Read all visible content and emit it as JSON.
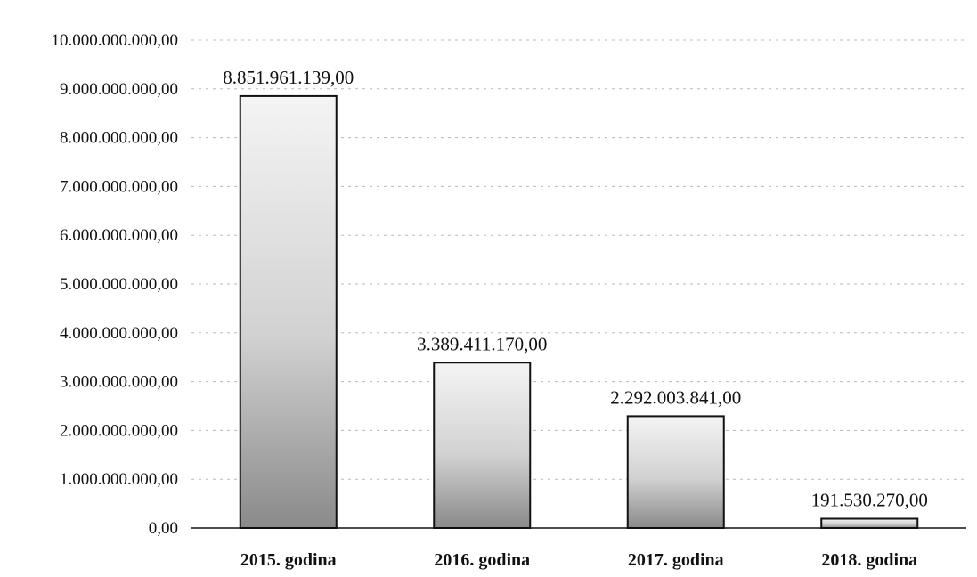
{
  "chart_data": {
    "type": "bar",
    "title": "",
    "xlabel": "",
    "ylabel": "",
    "categories": [
      "2015. godina",
      "2016. godina",
      "2017. godina",
      "2018. godina"
    ],
    "values": [
      8851961139.0,
      3389411170.0,
      2292003841.0,
      191530270.0
    ],
    "value_labels": [
      "8.851.961.139,00",
      "3.389.411.170,00",
      "2.292.003.841,00",
      "191.530.270,00"
    ],
    "ylim": [
      0,
      10000000000
    ],
    "y_ticks": [
      0,
      1000000000,
      2000000000,
      3000000000,
      4000000000,
      5000000000,
      6000000000,
      7000000000,
      8000000000,
      9000000000,
      10000000000
    ],
    "y_tick_labels": [
      "0,00",
      "1.000.000.000,00",
      "2.000.000.000,00",
      "3.000.000.000,00",
      "4.000.000.000,00",
      "5.000.000.000,00",
      "6.000.000.000,00",
      "7.000.000.000,00",
      "8.000.000.000,00",
      "9.000.000.000,00",
      "10.000.000.000,00"
    ],
    "grid": true,
    "legend": "none",
    "colors": {
      "bar_fill_top": "#f4f4f4",
      "bar_fill_bottom": "#8a8a8a",
      "bar_stroke": "#111111",
      "grid": "#b8b8b8"
    }
  }
}
